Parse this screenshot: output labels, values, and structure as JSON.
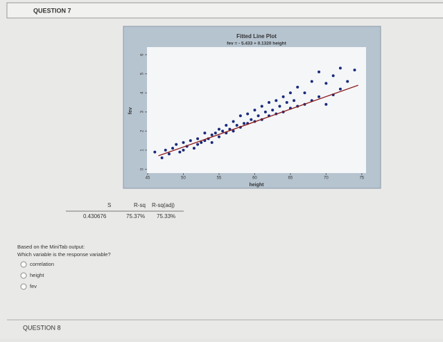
{
  "question7": "QUESTION 7",
  "chart_data": {
    "type": "scatter",
    "title": "Fitted Line Plot",
    "subtitle": "fev = - 5.433 + 0.1320 height",
    "x_label": "height",
    "y_label": "fev",
    "xlim": [
      44.9,
      75.6
    ],
    "ylim": [
      -0.2,
      6.4
    ],
    "xticks": [
      45,
      50,
      55,
      60,
      65,
      70,
      75
    ],
    "yticks": [
      0,
      1,
      2,
      3,
      4,
      5,
      6
    ],
    "points": {
      "color": "#1a2a7a",
      "x": [
        46,
        47,
        47.5,
        48,
        48.5,
        49,
        49.5,
        50,
        50,
        50.5,
        51,
        51.5,
        52,
        52,
        52.5,
        53,
        53,
        53.5,
        54,
        54,
        54.5,
        55,
        55,
        55.5,
        56,
        56,
        56.5,
        57,
        57,
        57.5,
        58,
        58,
        58.5,
        59,
        59,
        59.5,
        60,
        60,
        60.5,
        61,
        61,
        61.5,
        62,
        62,
        62.5,
        63,
        63,
        63.5,
        64,
        64,
        64.5,
        65,
        65,
        65.5,
        66,
        66,
        67,
        67,
        68,
        68,
        69,
        69,
        70,
        70,
        71,
        71,
        72,
        72,
        73,
        74
      ],
      "y": [
        0.9,
        0.6,
        1.0,
        0.8,
        1.1,
        1.3,
        0.9,
        1.4,
        1.0,
        1.2,
        1.5,
        1.1,
        1.6,
        1.3,
        1.4,
        1.9,
        1.5,
        1.6,
        1.8,
        1.4,
        1.9,
        2.1,
        1.7,
        2.0,
        2.3,
        1.9,
        2.1,
        2.5,
        2.0,
        2.3,
        2.8,
        2.2,
        2.4,
        2.9,
        2.4,
        2.6,
        3.1,
        2.5,
        2.8,
        3.3,
        2.6,
        3.0,
        3.5,
        2.8,
        3.1,
        3.6,
        2.9,
        3.3,
        3.8,
        3.0,
        3.5,
        4.0,
        3.2,
        3.6,
        4.3,
        3.3,
        4.0,
        3.4,
        4.6,
        3.6,
        5.1,
        3.8,
        4.5,
        3.4,
        4.9,
        3.9,
        5.3,
        4.2,
        4.6,
        5.2
      ]
    },
    "fit_line": {
      "color": "#8b1a1a",
      "x": [
        46.5,
        74.5
      ],
      "y": [
        0.705,
        4.401
      ]
    }
  },
  "stats": {
    "headers": [
      "S",
      "R-sq",
      "R-sq(adj)"
    ],
    "values": [
      "0.430676",
      "75.37%",
      "75.33%"
    ]
  },
  "question": {
    "lines": [
      "Based on the MiniTab output:",
      "Which variable is the response variable?"
    ],
    "options": [
      "correlation",
      "height",
      "fev"
    ]
  },
  "question8": "QUESTION 8"
}
